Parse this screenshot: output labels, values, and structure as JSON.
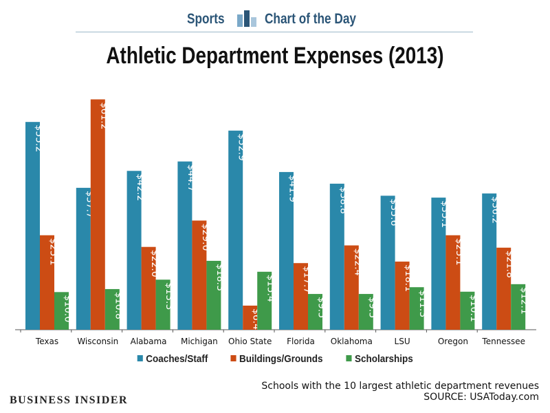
{
  "header": {
    "left_label": "Sports",
    "right_label": "Chart of the Day",
    "logo_icon": "bar-chart-icon"
  },
  "chart_data": {
    "type": "bar",
    "title": "Athletic Department Expenses (2013)",
    "categories": [
      "Texas",
      "Wisconsin",
      "Alabama",
      "Michigan",
      "Ohio State",
      "Florida",
      "Oklahoma",
      "LSU",
      "Oregon",
      "Tennessee"
    ],
    "series": [
      {
        "name": "Coaches/Staff",
        "color": "#2a88aa",
        "values": [
          55.2,
          37.7,
          42.2,
          44.7,
          52.9,
          41.9,
          38.8,
          35.6,
          35.1,
          36.2
        ],
        "labels": [
          "$55.2",
          "$37.7",
          "$42.2",
          "$44.7",
          "$52.9",
          "$41.9",
          "$38.8",
          "$35.6",
          "$35.1",
          "$36.2"
        ]
      },
      {
        "name": "Buildings/Grounds",
        "color": "#cc4c14",
        "values": [
          25.1,
          61.2,
          22.0,
          29.0,
          6.4,
          17.7,
          22.4,
          18.1,
          25.1,
          21.8
        ],
        "labels": [
          "$25.1",
          "$61.2",
          "$22.0",
          "$29.0",
          "$6.4",
          "$17.7",
          "$22.4",
          "$18.1",
          "$25.1",
          "$21.8"
        ]
      },
      {
        "name": "Scholarships",
        "color": "#3f9a4a",
        "values": [
          10.0,
          10.8,
          13.3,
          18.3,
          15.4,
          9.5,
          9.5,
          11.3,
          10.1,
          12.1
        ],
        "labels": [
          "$10.0",
          "$10.8",
          "$13.3",
          "$18.3",
          "$15.4",
          "$9.5",
          "$9.5",
          "$11.3",
          "$10.1",
          "$12.1"
        ]
      }
    ],
    "ylim": [
      0,
      62
    ],
    "grid": false,
    "legend_position": "bottom"
  },
  "footer": {
    "note": "Schools with the 10 largest athletic department revenues",
    "source": "SOURCE: USAToday.com",
    "brand_main": "BUSINESS",
    "brand_second": "INSIDER"
  }
}
